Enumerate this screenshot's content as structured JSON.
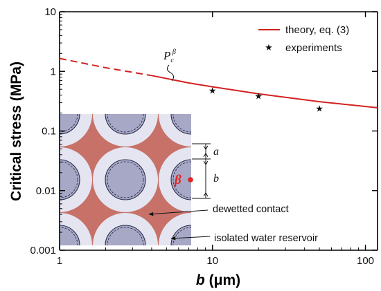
{
  "chart_data": {
    "type": "line",
    "x_scale": "log",
    "y_scale": "log",
    "xlim": [
      1,
      120
    ],
    "ylim": [
      0.001,
      10
    ],
    "x_ticks": [
      {
        "value": 1,
        "label": "1"
      },
      {
        "value": 10,
        "label": "10"
      },
      {
        "value": 100,
        "label": "100"
      }
    ],
    "y_ticks": [
      {
        "value": 0.001,
        "label": "0.001"
      },
      {
        "value": 0.01,
        "label": "0.01"
      },
      {
        "value": 0.1,
        "label": "0.1"
      },
      {
        "value": 1,
        "label": "1"
      },
      {
        "value": 10,
        "label": "10"
      }
    ],
    "xlabel_symbol": "b",
    "xlabel_unit": "(μm)",
    "ylabel": "Critical stress (MPa)",
    "legend_position": "top-right",
    "grid": false,
    "series": [
      {
        "name": "theory, eq. (3)",
        "style": "line",
        "color": "#d42020",
        "extrapolated_x_range": [
          1,
          4
        ],
        "x": [
          1,
          2,
          4,
          7,
          10,
          20,
          50,
          120
        ],
        "y": [
          1.65,
          1.15,
          0.85,
          0.64,
          0.55,
          0.42,
          0.31,
          0.245
        ]
      },
      {
        "name": "experiments",
        "style": "marker",
        "marker": "star",
        "color": "#111111",
        "x": [
          10,
          20,
          50
        ],
        "y": [
          0.48,
          0.39,
          0.24
        ]
      }
    ],
    "annotations": {
      "curve_label_main": "P",
      "curve_label_sub": "c",
      "curve_label_sup": "β",
      "inset_label_a": "a",
      "inset_label_b": "b",
      "inset_label_beta": "β",
      "dewetted_label": "dewetted contact",
      "reservoir_label": "isolated water reservoir"
    },
    "colors": {
      "theory_line": "#d42020",
      "inset_background": "#e8e9f4",
      "inset_fill_red": "#c77168",
      "inset_ring": "#e4e5f1",
      "inset_core": "#a7a8c6",
      "beta_point": "#e0241e"
    }
  }
}
